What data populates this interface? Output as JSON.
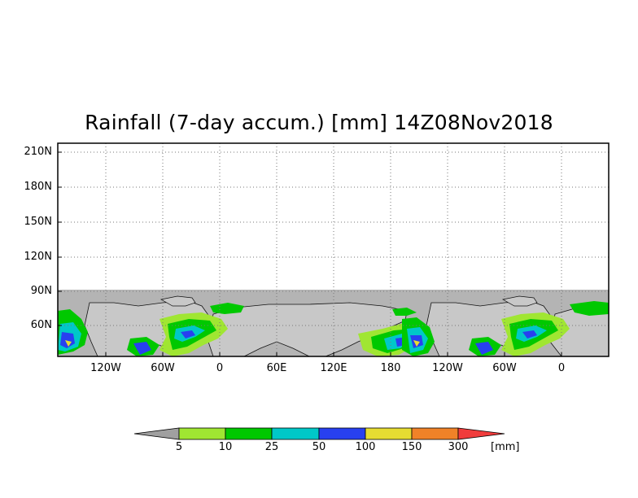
{
  "title": "Rainfall (7-day accum.) [mm] 14Z08Nov2018",
  "map": {
    "y_ticks": [
      "210N",
      "180N",
      "150N",
      "120N",
      "90N",
      "60N"
    ],
    "x_ticks": [
      "120W",
      "60W",
      "0",
      "60E",
      "120E",
      "180",
      "120W",
      "60W",
      "0"
    ],
    "no_data_color": "#b4b4b4",
    "coastline_color": "#000000",
    "gridline_style": "dotted"
  },
  "colorbar": {
    "unit": "[mm]",
    "labels": [
      "5",
      "10",
      "25",
      "50",
      "100",
      "150",
      "300"
    ],
    "under_color": "#a0a0a0",
    "over_color": "#f03c3c",
    "colors": [
      "#a0e632",
      "#00c800",
      "#00c8c8",
      "#2840f0",
      "#e6dc32",
      "#f08228"
    ]
  }
}
